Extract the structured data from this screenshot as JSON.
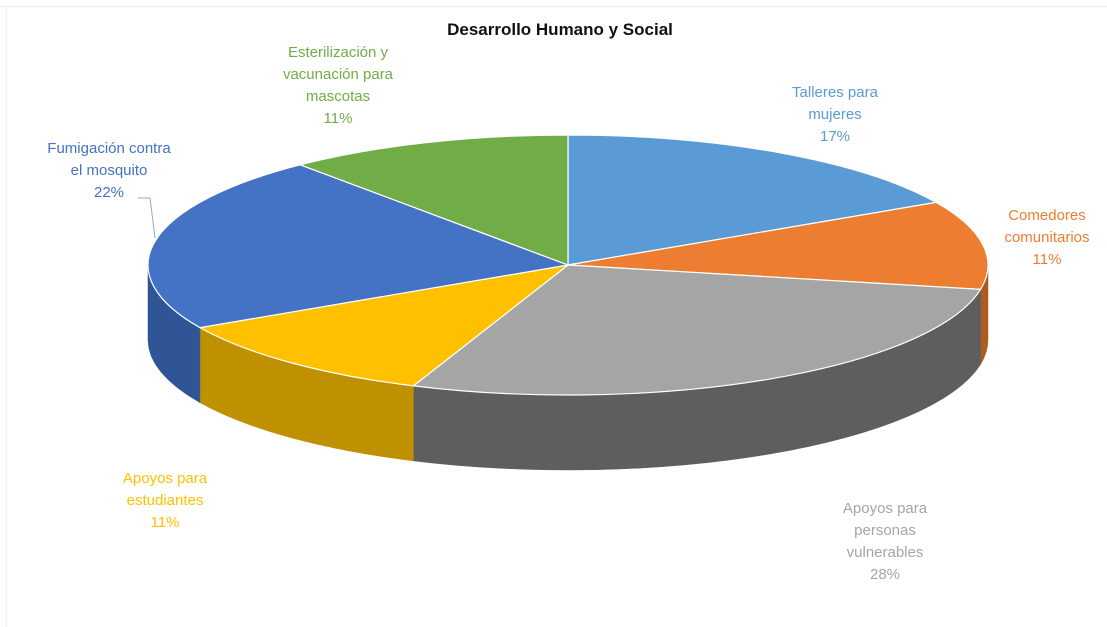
{
  "chart_data": {
    "type": "pie",
    "title": "Desarrollo Humano y Social",
    "slices": [
      {
        "label_lines": [
          "Talleres para",
          "mujeres"
        ],
        "percent_text": "17%",
        "value": 17,
        "color": "#5b9bd5",
        "side_color": "#41719c"
      },
      {
        "label_lines": [
          "Comedores",
          "comunitarios"
        ],
        "percent_text": "11%",
        "value": 11,
        "color": "#ed7d31",
        "side_color": "#ae5a21"
      },
      {
        "label_lines": [
          "Apoyos para",
          "personas",
          "vulnerables"
        ],
        "percent_text": "28%",
        "value": 28,
        "color": "#a5a5a5",
        "side_color": "#5e5e5e"
      },
      {
        "label_lines": [
          "Apoyos para",
          "estudiantes"
        ],
        "percent_text": "11%",
        "value": 11,
        "color": "#ffc000",
        "side_color": "#bf9000"
      },
      {
        "label_lines": [
          "Fumigación contra",
          "el mosquito"
        ],
        "percent_text": "22%",
        "value": 22,
        "color": "#4472c4",
        "side_color": "#2f5597"
      },
      {
        "label_lines": [
          "Esterilización y",
          "vacunación para",
          "mascotas"
        ],
        "percent_text": "11%",
        "value": 11,
        "color": "#70ad47",
        "side_color": "#507e32"
      }
    ]
  }
}
